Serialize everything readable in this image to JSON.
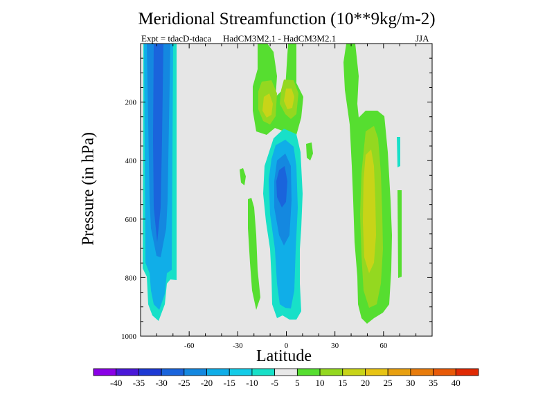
{
  "chart_data": {
    "type": "heatmap",
    "title": "Meridional Streamfunction (10**9kg/m-2)",
    "subtitle_left": "Expt = tdacD-tdaca",
    "subtitle_center": "HadCM3M2.1 - HadCM3M2.1",
    "subtitle_right": "JJA",
    "xlabel": "Latitude",
    "ylabel": "Pressure (in hPa)",
    "xlim": [
      -90,
      90
    ],
    "ylim": [
      1000,
      0
    ],
    "xticks": [
      -60,
      -30,
      0,
      30,
      60
    ],
    "xtick_labels": [
      "-60",
      "-30",
      "0",
      "30",
      "60"
    ],
    "yticks": [
      200,
      400,
      600,
      800,
      1000
    ],
    "ytick_labels": [
      "200",
      "400",
      "600",
      "800",
      "1000"
    ],
    "colorbar": {
      "labels": [
        "-40",
        "-35",
        "-30",
        "-25",
        "-20",
        "-15",
        "-10",
        "-5",
        "5",
        "10",
        "15",
        "20",
        "25",
        "30",
        "35",
        "40"
      ],
      "colors": [
        "#8a00e6",
        "#4a18d8",
        "#1e3ad4",
        "#1a64dc",
        "#1488e0",
        "#10aee8",
        "#14cce8",
        "#18e0c8",
        "#e8e8e8",
        "#56de30",
        "#94d820",
        "#c8d418",
        "#e8c414",
        "#e8a010",
        "#e87c0c",
        "#e85a08",
        "#e02a04"
      ]
    },
    "features": [
      {
        "name": "southern-negative-cell",
        "lat": [
          -88,
          -70
        ],
        "pressure": [
          0,
          960
        ],
        "min_value": -30
      },
      {
        "name": "equatorial-negative-cell",
        "lat": [
          -10,
          10
        ],
        "pressure": [
          280,
          960
        ],
        "min_value": -30
      },
      {
        "name": "upper-positive-cell",
        "lat": [
          -18,
          10
        ],
        "pressure": [
          0,
          290
        ],
        "max_value": 20
      },
      {
        "name": "northern-positive-cell",
        "lat": [
          37,
          64
        ],
        "pressure": [
          0,
          960
        ],
        "max_value": 20
      }
    ]
  }
}
